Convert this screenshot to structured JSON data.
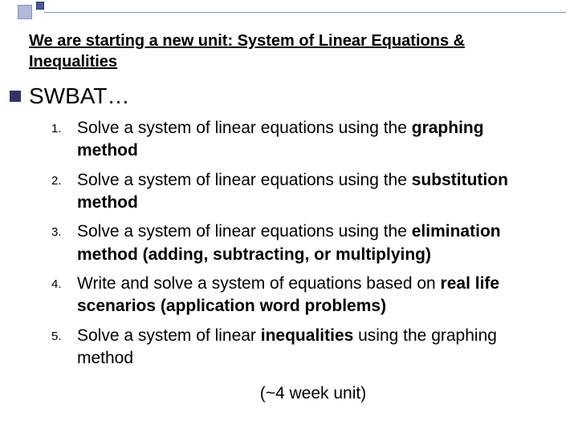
{
  "decoration": {
    "square1_color": "#b0b9d8",
    "square2_color": "#4a5a99",
    "line_color": "#8892bb"
  },
  "title": "We are starting a new unit: System of Linear Equations & Inequalities",
  "heading": "SWBAT…",
  "bullet_color": "#333366",
  "objectives": [
    {
      "num": "1.",
      "pre": "Solve a system of linear equations using the ",
      "bold": "graphing method",
      "post": ""
    },
    {
      "num": "2.",
      "pre": "Solve a system of linear equations using the ",
      "bold": "substitution method",
      "post": ""
    },
    {
      "num": "3.",
      "pre": "Solve a system of linear equations using the ",
      "bold": "elimination method (adding, subtracting, or multiplying)",
      "post": ""
    },
    {
      "num": "4.",
      "pre": "Write and solve a system of equations based on ",
      "bold": "real life scenarios (application word problems)",
      "post": ""
    },
    {
      "num": "5.",
      "pre": "Solve a system of linear ",
      "bold": "inequalities",
      "post": " using the graphing method"
    }
  ],
  "footer": "(~4 week unit)",
  "typography": {
    "title_fontsize": 20,
    "heading_fontsize": 28,
    "objective_fontsize": 21,
    "number_fontsize": 15,
    "text_color": "#000000",
    "background_color": "#ffffff",
    "font_family": "Arial"
  }
}
